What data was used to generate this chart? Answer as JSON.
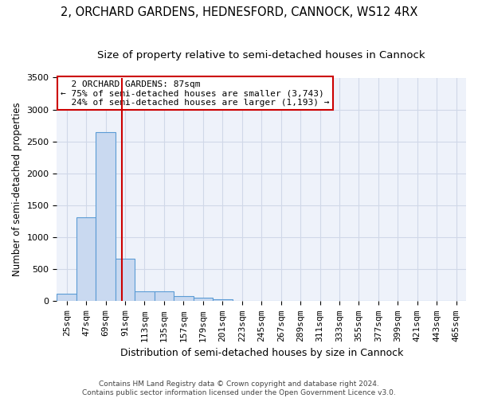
{
  "title_line1": "2, ORCHARD GARDENS, HEDNESFORD, CANNOCK, WS12 4RX",
  "title_line2": "Size of property relative to semi-detached houses in Cannock",
  "xlabel": "Distribution of semi-detached houses by size in Cannock",
  "ylabel": "Number of semi-detached properties",
  "categories": [
    "25sqm",
    "47sqm",
    "69sqm",
    "91sqm",
    "113sqm",
    "135sqm",
    "157sqm",
    "179sqm",
    "201sqm",
    "223sqm",
    "245sqm",
    "267sqm",
    "289sqm",
    "311sqm",
    "333sqm",
    "355sqm",
    "377sqm",
    "399sqm",
    "421sqm",
    "443sqm",
    "465sqm"
  ],
  "values": [
    120,
    1310,
    2650,
    670,
    150,
    150,
    85,
    50,
    30,
    5,
    3,
    2,
    1,
    1,
    0,
    0,
    0,
    0,
    0,
    0,
    0
  ],
  "bar_color": "#c9d9f0",
  "bar_edge_color": "#5b9bd5",
  "property_size_sqm": 87,
  "property_label": "2 ORCHARD GARDENS: 87sqm",
  "smaller_pct": 75,
  "smaller_count": 3743,
  "larger_pct": 24,
  "larger_count": 1193,
  "vline_color": "#cc0000",
  "annotation_box_edge_color": "#cc0000",
  "ylim": [
    0,
    3500
  ],
  "yticks": [
    0,
    500,
    1000,
    1500,
    2000,
    2500,
    3000,
    3500
  ],
  "grid_color": "#d0d8e8",
  "background_color": "#eef2fa",
  "title_fontsize": 10.5,
  "subtitle_fontsize": 9.5,
  "xlabel_fontsize": 9,
  "ylabel_fontsize": 8.5,
  "tick_fontsize": 8,
  "annotation_fontsize": 8,
  "footer_line1": "Contains HM Land Registry data © Crown copyright and database right 2024.",
  "footer_line2": "Contains public sector information licensed under the Open Government Licence v3.0.",
  "footer_fontsize": 6.5
}
